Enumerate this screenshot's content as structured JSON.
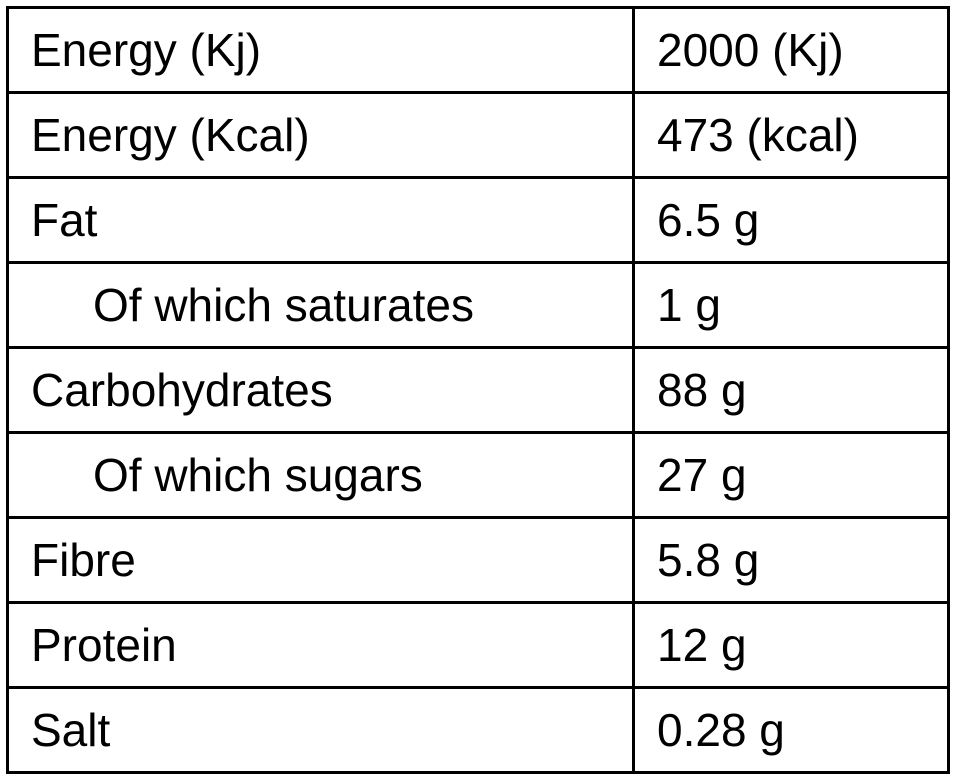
{
  "rows": [
    {
      "label": "Energy (Kj)",
      "value": "2000 (Kj)"
    },
    {
      "label": "Energy (Kcal)",
      "value": "473 (kcal)"
    },
    {
      "label": "Fat",
      "value": "6.5 g"
    },
    {
      "label": "Of which saturates",
      "value": "1 g"
    },
    {
      "label": "Carbohydrates",
      "value": "88 g"
    },
    {
      "label": "Of which sugars",
      "value": "27 g"
    },
    {
      "label": "Fibre",
      "value": "5.8 g"
    },
    {
      "label": "Protein",
      "value": "12 g"
    },
    {
      "label": "Salt",
      "value": "0.28 g"
    }
  ]
}
